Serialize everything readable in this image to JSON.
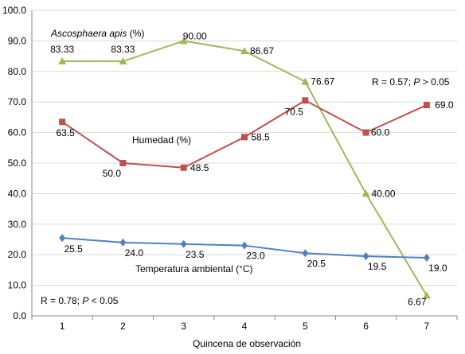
{
  "chart_data": {
    "type": "line",
    "x": [
      "1",
      "2",
      "3",
      "4",
      "5",
      "6",
      "7"
    ],
    "xlabel": "Quincena de observación",
    "ylabel": "",
    "ylim": [
      0,
      100
    ],
    "yticks": [
      "0.0",
      "10.0",
      "20.0",
      "30.0",
      "40.0",
      "50.0",
      "60.0",
      "70.0",
      "80.0",
      "90.0",
      "100.0"
    ],
    "grid": "horizontal",
    "series": [
      {
        "name": "Ascosphaera apis (%)",
        "color": "#9BBB59",
        "marker": "triangle",
        "values": [
          83.33,
          83.33,
          90.0,
          86.67,
          76.67,
          40.0,
          6.67
        ],
        "labels": [
          "83.33",
          "83.33",
          "90.00",
          "86.67",
          "76.67",
          "40.00",
          "6.67"
        ]
      },
      {
        "name": "Humedad (%)",
        "color": "#C0504D",
        "marker": "square",
        "values": [
          63.5,
          50.0,
          48.5,
          58.5,
          70.5,
          60.0,
          69.0
        ],
        "labels": [
          "63.5",
          "50.0",
          "48.5",
          "58.5",
          "70.5",
          "60.0",
          "69.0"
        ]
      },
      {
        "name": "Temperatura ambiental (°C)",
        "color": "#4F81BD",
        "marker": "diamond",
        "values": [
          25.5,
          24.0,
          23.5,
          23.0,
          20.5,
          19.5,
          19.0
        ],
        "labels": [
          "25.5",
          "24.0",
          "23.5",
          "23.0",
          "20.5",
          "19.5",
          "19.0"
        ]
      }
    ],
    "annotations": {
      "ascosphaera_name": "Ascosphaera apis",
      "ascosphaera_unit": " (%)",
      "humedad": "Humedad (%)",
      "temperatura": "Temperatura ambiental (°C)",
      "stat_humedad": [
        "R = 0.57; ",
        "P",
        " > 0.05"
      ],
      "stat_temperatura": [
        "R = 0.78; ",
        "P",
        " < 0.05"
      ]
    }
  }
}
